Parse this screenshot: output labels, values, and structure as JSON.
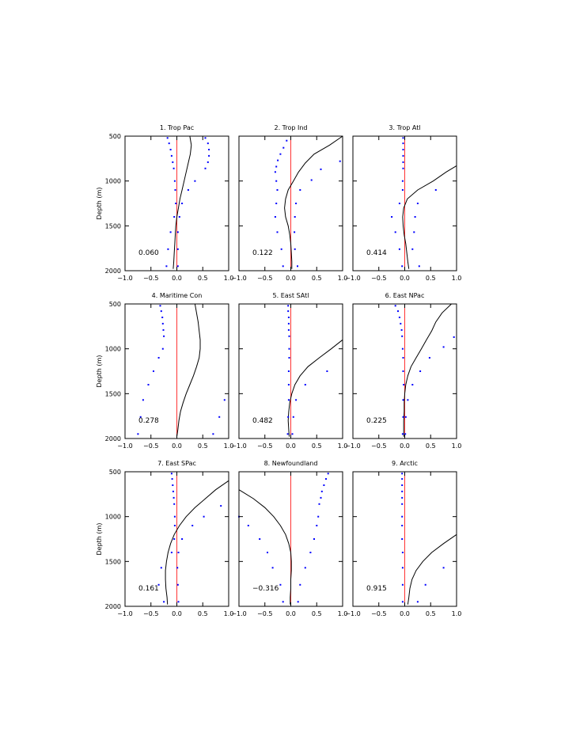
{
  "colors": {
    "model": "#000000",
    "dots": "#0000ff",
    "zero": "#ff0000"
  },
  "chart_data": {
    "type": "line",
    "layout": "3x3 small multiples",
    "grid": false,
    "ylabel": "Depth (m)",
    "xlim": [
      -1.0,
      1.0
    ],
    "ylim": [
      2000,
      500
    ],
    "y_inverted": true,
    "xticks": [
      -1.0,
      -0.5,
      0.0,
      0.5,
      1.0
    ],
    "xtick_labels": [
      "−1.0",
      "−0.5",
      "0.0",
      "0.5",
      "1.0"
    ],
    "yticks": [
      500,
      1000,
      1500,
      2000
    ],
    "ytick_labels": [
      "500",
      "1000",
      "1500",
      "2000"
    ],
    "panels": [
      {
        "title": "1. Trop Pac",
        "corr": "0.060",
        "line": {
          "depth": [
            500,
            600,
            700,
            800,
            900,
            1000,
            1100,
            1200,
            1300,
            1400,
            1500,
            1600,
            1700,
            1800,
            1900,
            1980
          ],
          "x": [
            0.25,
            0.28,
            0.26,
            0.22,
            0.18,
            0.14,
            0.1,
            0.06,
            0.03,
            0.0,
            -0.02,
            -0.03,
            -0.04,
            -0.05,
            -0.06,
            -0.07
          ]
        },
        "dots_left": {
          "depth": [
            520,
            580,
            650,
            720,
            790,
            860,
            1000,
            1100,
            1250,
            1400,
            1570,
            1760,
            1950
          ],
          "x": [
            -0.18,
            -0.15,
            -0.12,
            -0.1,
            -0.08,
            -0.06,
            -0.04,
            -0.03,
            -0.02,
            -0.05,
            -0.12,
            -0.17,
            -0.2
          ]
        },
        "dots_right": {
          "depth": [
            520,
            580,
            650,
            720,
            790,
            860,
            1000,
            1100,
            1250,
            1400,
            1570,
            1760,
            1950
          ],
          "x": [
            0.55,
            0.6,
            0.62,
            0.62,
            0.6,
            0.55,
            0.35,
            0.22,
            0.1,
            0.05,
            0.02,
            0.02,
            0.02
          ]
        }
      },
      {
        "title": "2. Trop Ind",
        "corr": "0.122",
        "line": {
          "depth": [
            500,
            600,
            700,
            800,
            900,
            1000,
            1100,
            1200,
            1300,
            1400,
            1500,
            1600,
            1700,
            1800,
            1900,
            1980
          ],
          "x": [
            1.0,
            0.75,
            0.45,
            0.28,
            0.15,
            0.05,
            -0.05,
            -0.1,
            -0.12,
            -0.1,
            -0.05,
            -0.02,
            0.0,
            0.01,
            0.02,
            0.02
          ]
        },
        "dots_left": {
          "depth": [
            550,
            630,
            700,
            770,
            840,
            900,
            1000,
            1100,
            1250,
            1400,
            1570,
            1760,
            1950
          ],
          "x": [
            -0.08,
            -0.14,
            -0.2,
            -0.25,
            -0.28,
            -0.3,
            -0.28,
            -0.26,
            -0.28,
            -0.3,
            -0.26,
            -0.18,
            -0.15
          ]
        },
        "dots_right": {
          "depth": [
            780,
            870,
            990,
            1100,
            1250,
            1400,
            1570,
            1760,
            1950
          ],
          "x": [
            0.95,
            0.58,
            0.4,
            0.18,
            0.1,
            0.08,
            0.07,
            0.08,
            0.13
          ]
        }
      },
      {
        "title": "3. Trop Atl",
        "corr": "0.414",
        "line": {
          "depth": [
            830,
            900,
            1000,
            1100,
            1200,
            1300,
            1400,
            1500,
            1600,
            1700,
            1800,
            1900,
            1980
          ],
          "x": [
            1.0,
            0.8,
            0.55,
            0.25,
            0.05,
            -0.02,
            -0.04,
            -0.03,
            -0.01,
            0.02,
            0.04,
            0.06,
            0.08
          ]
        },
        "dots_left": {
          "depth": [
            520,
            580,
            650,
            720,
            790,
            860,
            1000,
            1100,
            1250,
            1400,
            1570,
            1760,
            1950
          ],
          "x": [
            -0.03,
            -0.03,
            -0.03,
            -0.03,
            -0.03,
            -0.03,
            -0.04,
            -0.04,
            -0.1,
            -0.25,
            -0.18,
            -0.1,
            -0.05
          ]
        },
        "dots_right": {
          "depth": [
            1100,
            1250,
            1400,
            1570,
            1760,
            1950
          ],
          "x": [
            0.6,
            0.25,
            0.2,
            0.18,
            0.15,
            0.28
          ]
        }
      },
      {
        "title": "4. Maritime Con",
        "corr": "0.278",
        "line": {
          "depth": [
            500,
            600,
            700,
            800,
            900,
            1000,
            1100,
            1200,
            1300,
            1400,
            1500,
            1600,
            1700,
            1800,
            1900,
            1980
          ],
          "x": [
            0.35,
            0.38,
            0.41,
            0.43,
            0.45,
            0.45,
            0.43,
            0.38,
            0.32,
            0.25,
            0.18,
            0.12,
            0.07,
            0.04,
            0.02,
            0.0
          ]
        },
        "dots_left": {
          "depth": [
            520,
            580,
            650,
            720,
            790,
            860,
            1000,
            1100,
            1250,
            1400,
            1570,
            1760,
            1950
          ],
          "x": [
            -0.32,
            -0.3,
            -0.28,
            -0.27,
            -0.26,
            -0.25,
            -0.27,
            -0.35,
            -0.45,
            -0.55,
            -0.65,
            -0.7,
            -0.75
          ]
        },
        "dots_right": {
          "depth": [
            1570,
            1760,
            1950
          ],
          "x": [
            0.92,
            0.82,
            0.7
          ]
        }
      },
      {
        "title": "5. East SAtl",
        "corr": "0.482",
        "line": {
          "depth": [
            900,
            1000,
            1100,
            1200,
            1300,
            1400,
            1500,
            1600,
            1700,
            1800,
            1900,
            1980
          ],
          "x": [
            1.0,
            0.78,
            0.55,
            0.33,
            0.18,
            0.08,
            0.02,
            -0.02,
            -0.04,
            -0.05,
            -0.04,
            -0.03
          ]
        },
        "dots_left": {
          "depth": [
            520,
            580,
            650,
            720,
            790,
            860,
            1000,
            1100,
            1250,
            1400,
            1570,
            1760,
            1950
          ],
          "x": [
            -0.05,
            -0.05,
            -0.04,
            -0.04,
            -0.04,
            -0.03,
            -0.03,
            -0.03,
            -0.04,
            -0.04,
            -0.04,
            -0.05,
            -0.06
          ]
        },
        "dots_right": {
          "depth": [
            1250,
            1400,
            1570,
            1760,
            1950
          ],
          "x": [
            0.7,
            0.28,
            0.1,
            0.05,
            0.03
          ]
        }
      },
      {
        "title": "6. East NPac",
        "corr": "0.225",
        "line": {
          "depth": [
            500,
            600,
            700,
            800,
            900,
            1000,
            1100,
            1200,
            1300,
            1400,
            1500,
            1600,
            1700,
            1800,
            1900,
            1980
          ],
          "x": [
            0.9,
            0.72,
            0.6,
            0.52,
            0.42,
            0.32,
            0.22,
            0.12,
            0.06,
            0.02,
            0.0,
            -0.01,
            -0.01,
            -0.02,
            -0.02,
            -0.02
          ]
        },
        "dots_left": {
          "depth": [
            520,
            580,
            650,
            720,
            790,
            860,
            1000,
            1100,
            1250,
            1400,
            1570,
            1760,
            1950
          ],
          "x": [
            -0.18,
            -0.13,
            -0.1,
            -0.08,
            -0.06,
            -0.05,
            -0.04,
            -0.03,
            -0.03,
            -0.02,
            -0.03,
            -0.03,
            -0.04
          ]
        },
        "dots_right": {
          "depth": [
            870,
            980,
            1100,
            1250,
            1400,
            1570,
            1760,
            1950
          ],
          "x": [
            0.95,
            0.75,
            0.48,
            0.3,
            0.15,
            0.06,
            0.02,
            0.01
          ]
        }
      },
      {
        "title": "7. East SPac",
        "corr": "0.161",
        "line": {
          "depth": [
            600,
            700,
            800,
            900,
            1000,
            1100,
            1200,
            1300,
            1400,
            1500,
            1600,
            1700,
            1800,
            1900,
            1980
          ],
          "x": [
            1.0,
            0.75,
            0.55,
            0.35,
            0.18,
            0.05,
            -0.05,
            -0.12,
            -0.17,
            -0.2,
            -0.22,
            -0.22,
            -0.21,
            -0.19,
            -0.18
          ]
        },
        "dots_left": {
          "depth": [
            520,
            580,
            650,
            720,
            790,
            860,
            1000,
            1100,
            1250,
            1400,
            1570,
            1760,
            1950
          ],
          "x": [
            -0.1,
            -0.09,
            -0.08,
            -0.07,
            -0.06,
            -0.05,
            -0.04,
            -0.04,
            -0.05,
            -0.1,
            -0.3,
            -0.35,
            -0.25
          ]
        },
        "dots_right": {
          "depth": [
            880,
            1000,
            1100,
            1250,
            1400,
            1570,
            1760,
            1950
          ],
          "x": [
            0.85,
            0.52,
            0.3,
            0.1,
            0.03,
            0.01,
            0.02,
            0.03
          ]
        }
      },
      {
        "title": "8. Newfoundland",
        "corr": "−0.316",
        "line": {
          "depth": [
            700,
            800,
            900,
            1000,
            1100,
            1200,
            1300,
            1400,
            1500,
            1600,
            1700,
            1800,
            1900,
            1980
          ],
          "x": [
            -1.0,
            -0.72,
            -0.5,
            -0.33,
            -0.2,
            -0.1,
            -0.04,
            0.0,
            0.01,
            0.01,
            0.0,
            0.0,
            -0.01,
            -0.01
          ]
        },
        "dots_left": {
          "depth": [
            1000,
            1100,
            1250,
            1400,
            1570,
            1760,
            1950
          ],
          "x": [
            -1.0,
            -0.82,
            -0.6,
            -0.45,
            -0.35,
            -0.2,
            -0.15
          ]
        },
        "dots_right": {
          "depth": [
            520,
            580,
            650,
            720,
            790,
            860,
            1000,
            1100,
            1250,
            1400,
            1570,
            1760,
            1950
          ],
          "x": [
            0.72,
            0.68,
            0.64,
            0.6,
            0.58,
            0.55,
            0.53,
            0.5,
            0.45,
            0.38,
            0.28,
            0.18,
            0.14
          ]
        }
      },
      {
        "title": "9. Arctic",
        "corr": "0.915",
        "line": {
          "depth": [
            1200,
            1300,
            1400,
            1500,
            1600,
            1700,
            1800,
            1900,
            1980
          ],
          "x": [
            1.0,
            0.75,
            0.52,
            0.35,
            0.22,
            0.14,
            0.1,
            0.08,
            0.06
          ]
        },
        "dots_left": {
          "depth": [
            520,
            580,
            650,
            720,
            790,
            860,
            1000,
            1100,
            1250,
            1400,
            1570,
            1760,
            1950
          ],
          "x": [
            -0.05,
            -0.05,
            -0.05,
            -0.05,
            -0.05,
            -0.05,
            -0.05,
            -0.05,
            -0.05,
            -0.04,
            -0.04,
            -0.04,
            -0.04
          ]
        },
        "dots_right": {
          "depth": [
            1570,
            1760,
            1950
          ],
          "x": [
            0.75,
            0.4,
            0.25
          ]
        }
      }
    ]
  }
}
